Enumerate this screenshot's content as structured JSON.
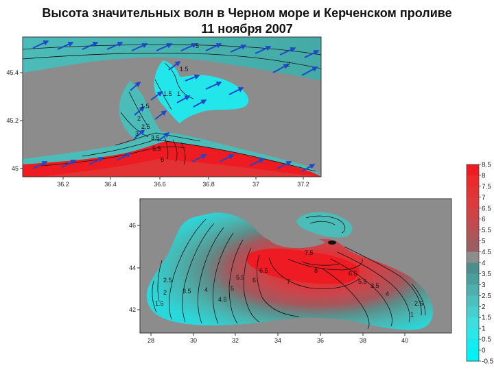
{
  "title": {
    "line1": "Высота значительных волн в Черном море и Керченском проливе",
    "line2": "11 ноября 2007"
  },
  "top_map": {
    "name": "Kerch Strait region",
    "x_ticks": [
      "36.2",
      "36.4",
      "36.6",
      "36.8",
      "37",
      "37.2"
    ],
    "y_ticks": [
      "45.4",
      "45.2",
      "45"
    ],
    "contour_labels": [
      "5",
      "1.5",
      "2",
      "1.5",
      "1",
      "1.5",
      "2",
      "2.5",
      "3",
      "3.5",
      "5.5",
      "6"
    ]
  },
  "bottom_map": {
    "name": "Black Sea",
    "x_ticks": [
      "28",
      "30",
      "32",
      "34",
      "36",
      "38",
      "40"
    ],
    "y_ticks": [
      "46",
      "44",
      "42"
    ],
    "contour_labels": [
      "1.5",
      "2",
      "2.5",
      "3.5",
      "4",
      "4.5",
      "5",
      "5.5",
      "6",
      "6.5",
      "7",
      "7.5",
      "8",
      "6.5",
      "5.5",
      "3.5",
      "4",
      "2.5",
      "1"
    ]
  },
  "colorbar": {
    "labels": [
      "8.5",
      "8",
      "7.5",
      "7",
      "6.5",
      "6",
      "5.5",
      "5",
      "4.5",
      "4",
      "3.5",
      "3",
      "2.5",
      "2",
      "1.5",
      "1",
      "0.5",
      "0",
      "-0.5"
    ],
    "colors": [
      "#ee1b22",
      "#ec2a2b",
      "#e33234",
      "#dc3a3c",
      "#cf4246",
      "#bf4b50",
      "#ae5559",
      "#9a5e61",
      "#8d8d8d",
      "#4a8f8c",
      "#4a9f9c",
      "#4db0ad",
      "#4cc0bd",
      "#47cfcf",
      "#3fdede",
      "#2ce6e8",
      "#14ecef",
      "#00f2f4"
    ]
  },
  "colors": {
    "land": "#8c8c8c",
    "calm": "#22e6ea",
    "wind_arrow": "#1f47c8",
    "peak": "#ee1b22"
  }
}
